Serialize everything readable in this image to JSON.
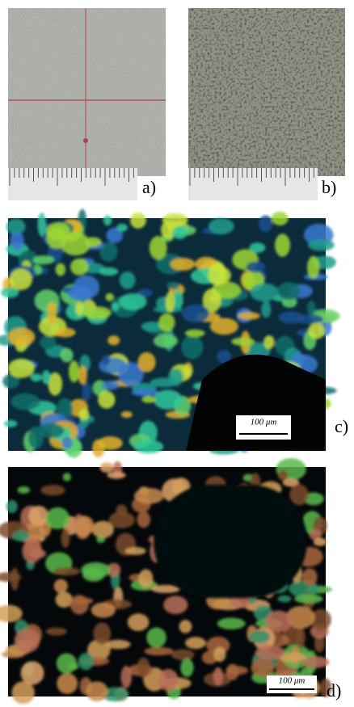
{
  "panels": [
    {
      "label": "a)"
    },
    {
      "label": "b)"
    },
    {
      "label": "c)",
      "scale_bar": "100 μm"
    },
    {
      "label": "d)",
      "scale_bar": "100 μm"
    }
  ]
}
